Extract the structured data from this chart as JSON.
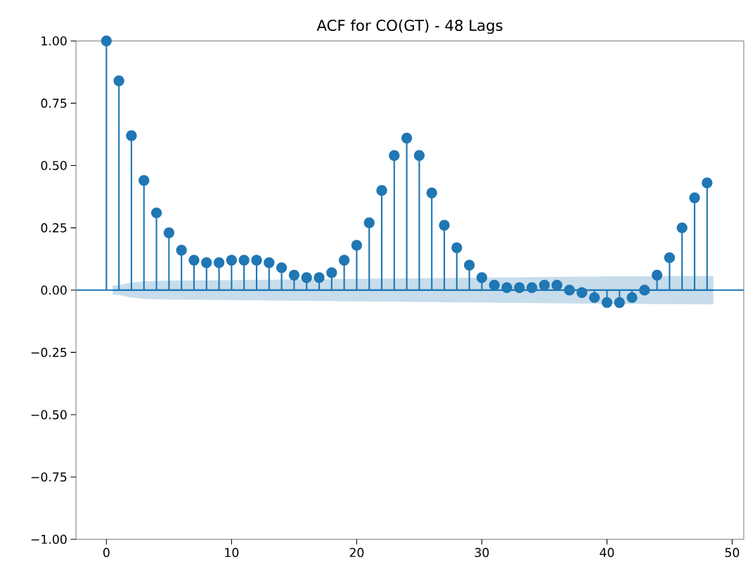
{
  "chart_data": {
    "type": "lollipop",
    "title": "ACF for CO(GT) - 48 Lags",
    "x": [
      0,
      1,
      2,
      3,
      4,
      5,
      6,
      7,
      8,
      9,
      10,
      11,
      12,
      13,
      14,
      15,
      16,
      17,
      18,
      19,
      20,
      21,
      22,
      23,
      24,
      25,
      26,
      27,
      28,
      29,
      30,
      31,
      32,
      33,
      34,
      35,
      36,
      37,
      38,
      39,
      40,
      41,
      42,
      43,
      44,
      45,
      46,
      47,
      48
    ],
    "series": [
      {
        "color": "#1f77b4",
        "values": [
          1.0,
          0.84,
          0.62,
          0.44,
          0.31,
          0.23,
          0.16,
          0.12,
          0.11,
          0.11,
          0.12,
          0.12,
          0.12,
          0.11,
          0.09,
          0.06,
          0.05,
          0.05,
          0.07,
          0.12,
          0.18,
          0.27,
          0.4,
          0.54,
          0.61,
          0.54,
          0.39,
          0.26,
          0.17,
          0.1,
          0.05,
          0.02,
          0.01,
          0.01,
          0.01,
          0.02,
          0.02,
          0.0,
          -0.01,
          -0.03,
          -0.05,
          -0.05,
          -0.03,
          0.0,
          0.06,
          0.13,
          0.25,
          0.37,
          0.43
        ]
      },
      {
        "type": "line",
        "marker": "none",
        "color": "#1f77b4",
        "x": [
          0.5,
          1,
          2,
          3,
          5,
          10,
          20,
          30,
          40,
          48.5
        ],
        "values": [
          0,
          0,
          0,
          0,
          0,
          0,
          0,
          0,
          0,
          0
        ],
        "lower": [
          -0.02,
          -0.02,
          -0.03,
          -0.035,
          -0.038,
          -0.04,
          -0.045,
          -0.05,
          -0.055,
          -0.057
        ],
        "upper": [
          0.02,
          0.02,
          0.03,
          0.035,
          0.038,
          0.04,
          0.045,
          0.05,
          0.055,
          0.057
        ]
      }
    ],
    "ref_lines": [
      {
        "axis": "y",
        "value": 0,
        "color": "#1f77b4"
      }
    ],
    "marker": "circle",
    "xlim": [
      -2.43,
      50.93
    ],
    "ylim": [
      -1,
      1
    ],
    "xticks": [
      0,
      10,
      20,
      30,
      40,
      50
    ],
    "yticks": [
      {
        "value": -1,
        "label": "−1.00"
      },
      {
        "value": -0.75,
        "label": "−0.75"
      },
      {
        "value": -0.5,
        "label": "−0.50"
      },
      {
        "value": -0.25,
        "label": "−0.25"
      },
      {
        "value": 0,
        "label": "0.00"
      },
      {
        "value": 0.25,
        "label": "0.25"
      },
      {
        "value": 0.5,
        "label": "0.50"
      },
      {
        "value": 0.75,
        "label": "0.75"
      },
      {
        "value": 1,
        "label": "1.00"
      }
    ]
  }
}
